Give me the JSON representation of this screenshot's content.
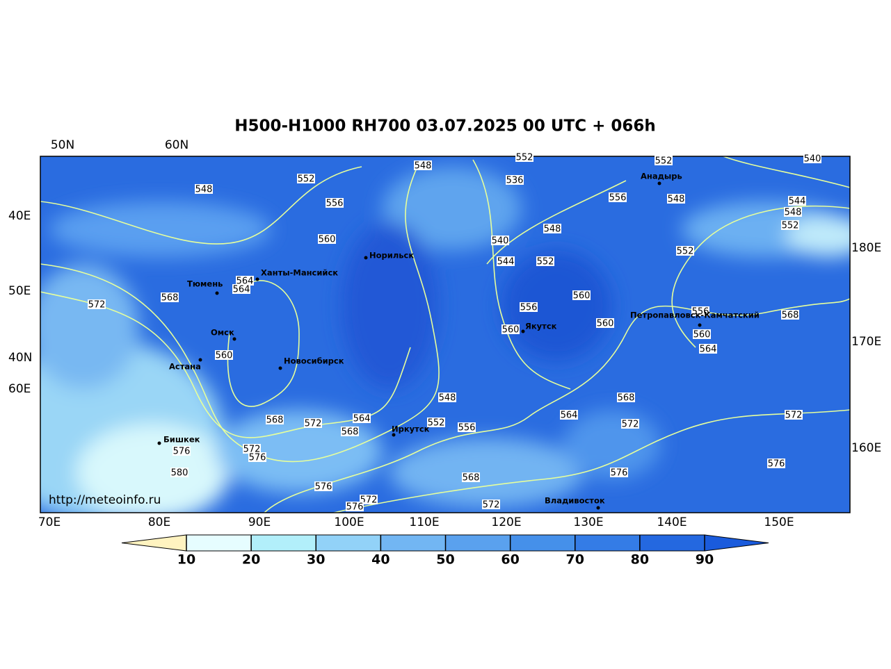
{
  "title": "H500-H1000 RH700 03.07.2025 00 UTC + 066h",
  "url": "http://meteoinfo.ru",
  "lon_labels_bottom": [
    "70E",
    "80E",
    "90E",
    "100E",
    "110E",
    "120E",
    "130E",
    "140E",
    "150E"
  ],
  "lat_labels_top": [
    "50N",
    "60N"
  ],
  "left_labels": [
    "40E",
    "50E",
    "40N",
    "60E"
  ],
  "right_labels": [
    "180E",
    "170E",
    "160E"
  ],
  "cities": [
    "Анадырь",
    "Норильск",
    "Ханты-Мансийск",
    "Тюмень",
    "Омск",
    "Астана",
    "Новосибирск",
    "Якутск",
    "Петропавловск-Камчатский",
    "Бишкек",
    "Иркутск",
    "Владивосток"
  ],
  "contour_labels": [
    552,
    548,
    552,
    536,
    552,
    540,
    548,
    556,
    556,
    548,
    544,
    548,
    552,
    548,
    560,
    540,
    544,
    552,
    552,
    564,
    564,
    568,
    572,
    556,
    560,
    556,
    568,
    560,
    560,
    560,
    564,
    560,
    548,
    568,
    564,
    552,
    556,
    568,
    572,
    568,
    564,
    572,
    572,
    572,
    576,
    576,
    576,
    580,
    576,
    568,
    576,
    572,
    576,
    572
  ],
  "colorbar": {
    "ticks": [
      10,
      20,
      30,
      40,
      50,
      60,
      70,
      80,
      90
    ],
    "colors": [
      "#fff3c0",
      "#e6fdff",
      "#b2effa",
      "#92d2f8",
      "#72b6f3",
      "#5aa1ee",
      "#4590ea",
      "#347ce6",
      "#2468e0",
      "#1a5bdc"
    ]
  }
}
